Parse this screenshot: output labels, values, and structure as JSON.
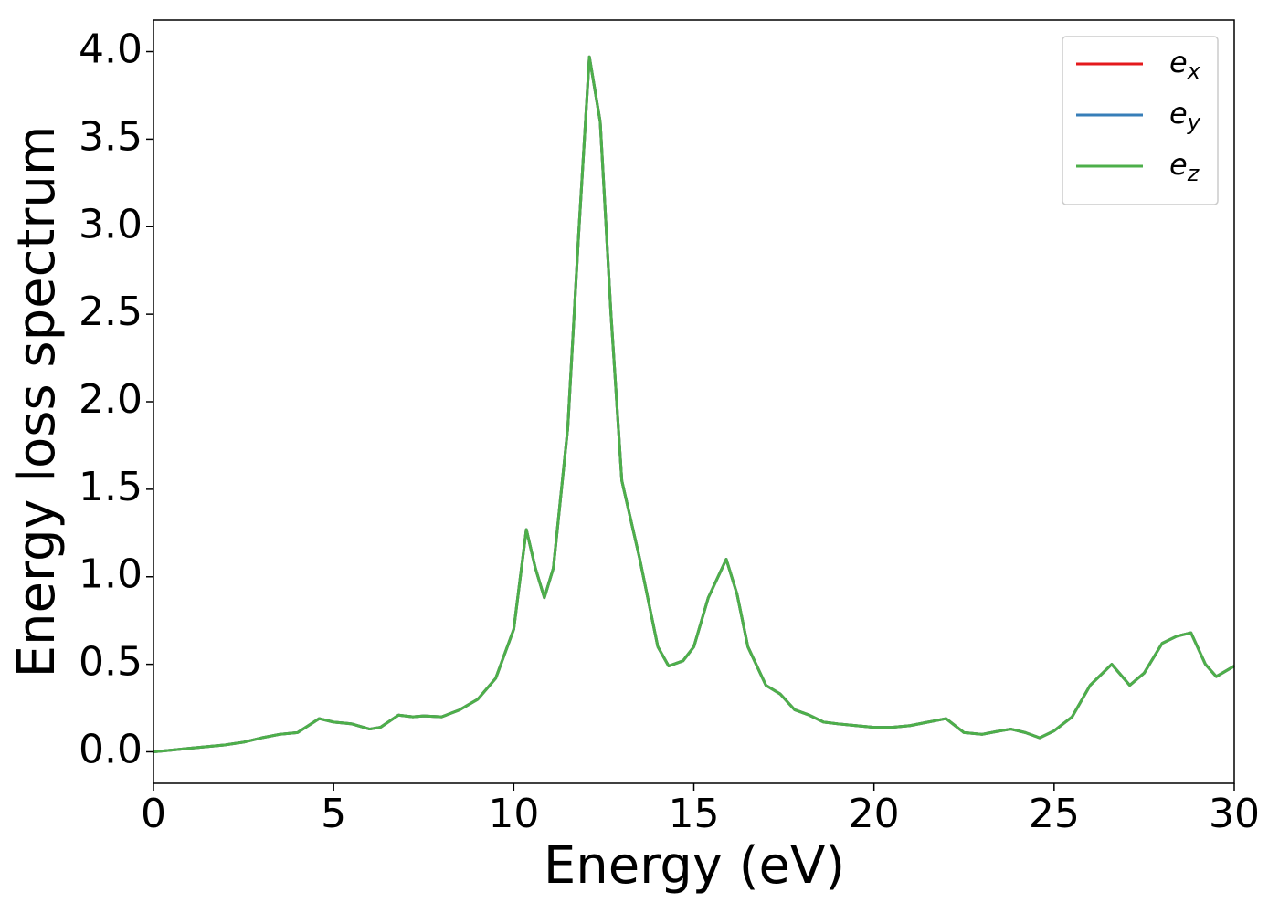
{
  "chart_data": {
    "type": "line",
    "xlabel": "Energy (eV)",
    "ylabel": "Energy loss spectrum",
    "x": [
      0,
      0.5,
      1,
      1.5,
      2,
      2.5,
      3,
      3.5,
      4,
      4.3,
      4.6,
      5,
      5.5,
      6,
      6.3,
      6.8,
      7.2,
      7.5,
      8,
      8.5,
      9,
      9.5,
      10,
      10.35,
      10.6,
      10.85,
      11.1,
      11.5,
      11.8,
      12.1,
      12.4,
      12.7,
      13,
      13.5,
      14,
      14.3,
      14.7,
      15,
      15.4,
      15.9,
      16.2,
      16.5,
      17,
      17.4,
      17.8,
      18.2,
      18.6,
      19,
      19.5,
      20,
      20.5,
      21,
      21.5,
      22,
      22.5,
      23,
      23.5,
      23.8,
      24.2,
      24.6,
      25,
      25.5,
      26,
      26.6,
      27.1,
      27.5,
      28,
      28.4,
      28.8,
      29.2,
      29.5,
      30
    ],
    "series": [
      {
        "name": "e_x",
        "color": "#e41a1c",
        "values": [
          0,
          0.01,
          0.02,
          0.03,
          0.04,
          0.055,
          0.08,
          0.1,
          0.11,
          0.15,
          0.19,
          0.17,
          0.16,
          0.13,
          0.14,
          0.21,
          0.2,
          0.205,
          0.2,
          0.24,
          0.3,
          0.42,
          0.7,
          1.27,
          1.05,
          0.88,
          1.05,
          1.85,
          2.95,
          3.97,
          3.6,
          2.5,
          1.55,
          1.1,
          0.6,
          0.49,
          0.52,
          0.6,
          0.88,
          1.1,
          0.9,
          0.6,
          0.38,
          0.33,
          0.24,
          0.21,
          0.17,
          0.16,
          0.15,
          0.14,
          0.14,
          0.15,
          0.17,
          0.19,
          0.11,
          0.1,
          0.12,
          0.13,
          0.11,
          0.08,
          0.12,
          0.2,
          0.38,
          0.5,
          0.38,
          0.45,
          0.62,
          0.66,
          0.68,
          0.5,
          0.43,
          0.49
        ]
      },
      {
        "name": "e_y",
        "color": "#377eb8",
        "values": [
          0,
          0.01,
          0.02,
          0.03,
          0.04,
          0.055,
          0.08,
          0.1,
          0.11,
          0.15,
          0.19,
          0.17,
          0.16,
          0.13,
          0.14,
          0.21,
          0.2,
          0.205,
          0.2,
          0.24,
          0.3,
          0.42,
          0.7,
          1.27,
          1.05,
          0.88,
          1.05,
          1.85,
          2.95,
          3.97,
          3.6,
          2.5,
          1.55,
          1.1,
          0.6,
          0.49,
          0.52,
          0.6,
          0.88,
          1.1,
          0.9,
          0.6,
          0.38,
          0.33,
          0.24,
          0.21,
          0.17,
          0.16,
          0.15,
          0.14,
          0.14,
          0.15,
          0.17,
          0.19,
          0.11,
          0.1,
          0.12,
          0.13,
          0.11,
          0.08,
          0.12,
          0.2,
          0.38,
          0.5,
          0.38,
          0.45,
          0.62,
          0.66,
          0.68,
          0.5,
          0.43,
          0.49
        ]
      },
      {
        "name": "e_z",
        "color": "#4daf4a",
        "values": [
          0,
          0.01,
          0.02,
          0.03,
          0.04,
          0.055,
          0.08,
          0.1,
          0.11,
          0.15,
          0.19,
          0.17,
          0.16,
          0.13,
          0.14,
          0.21,
          0.2,
          0.205,
          0.2,
          0.24,
          0.3,
          0.42,
          0.7,
          1.27,
          1.05,
          0.88,
          1.05,
          1.85,
          2.95,
          3.97,
          3.6,
          2.5,
          1.55,
          1.1,
          0.6,
          0.49,
          0.52,
          0.6,
          0.88,
          1.1,
          0.9,
          0.6,
          0.38,
          0.33,
          0.24,
          0.21,
          0.17,
          0.16,
          0.15,
          0.14,
          0.14,
          0.15,
          0.17,
          0.19,
          0.11,
          0.1,
          0.12,
          0.13,
          0.11,
          0.08,
          0.12,
          0.2,
          0.38,
          0.5,
          0.38,
          0.45,
          0.62,
          0.66,
          0.68,
          0.5,
          0.43,
          0.49
        ]
      }
    ],
    "xlim": [
      0,
      30
    ],
    "xticks": [
      0,
      5,
      10,
      15,
      20,
      25,
      30
    ],
    "ylim": [
      -0.18,
      4.18
    ],
    "yticks": [
      {
        "value": 0,
        "label": "0.0"
      },
      0.5,
      {
        "value": 1,
        "label": "1.0"
      },
      1.5,
      {
        "value": 2,
        "label": "2.0"
      },
      2.5,
      {
        "value": 3,
        "label": "3.0"
      },
      3.5,
      {
        "value": 4,
        "label": "4.0"
      }
    ],
    "legend": "upper right",
    "grid": false
  }
}
